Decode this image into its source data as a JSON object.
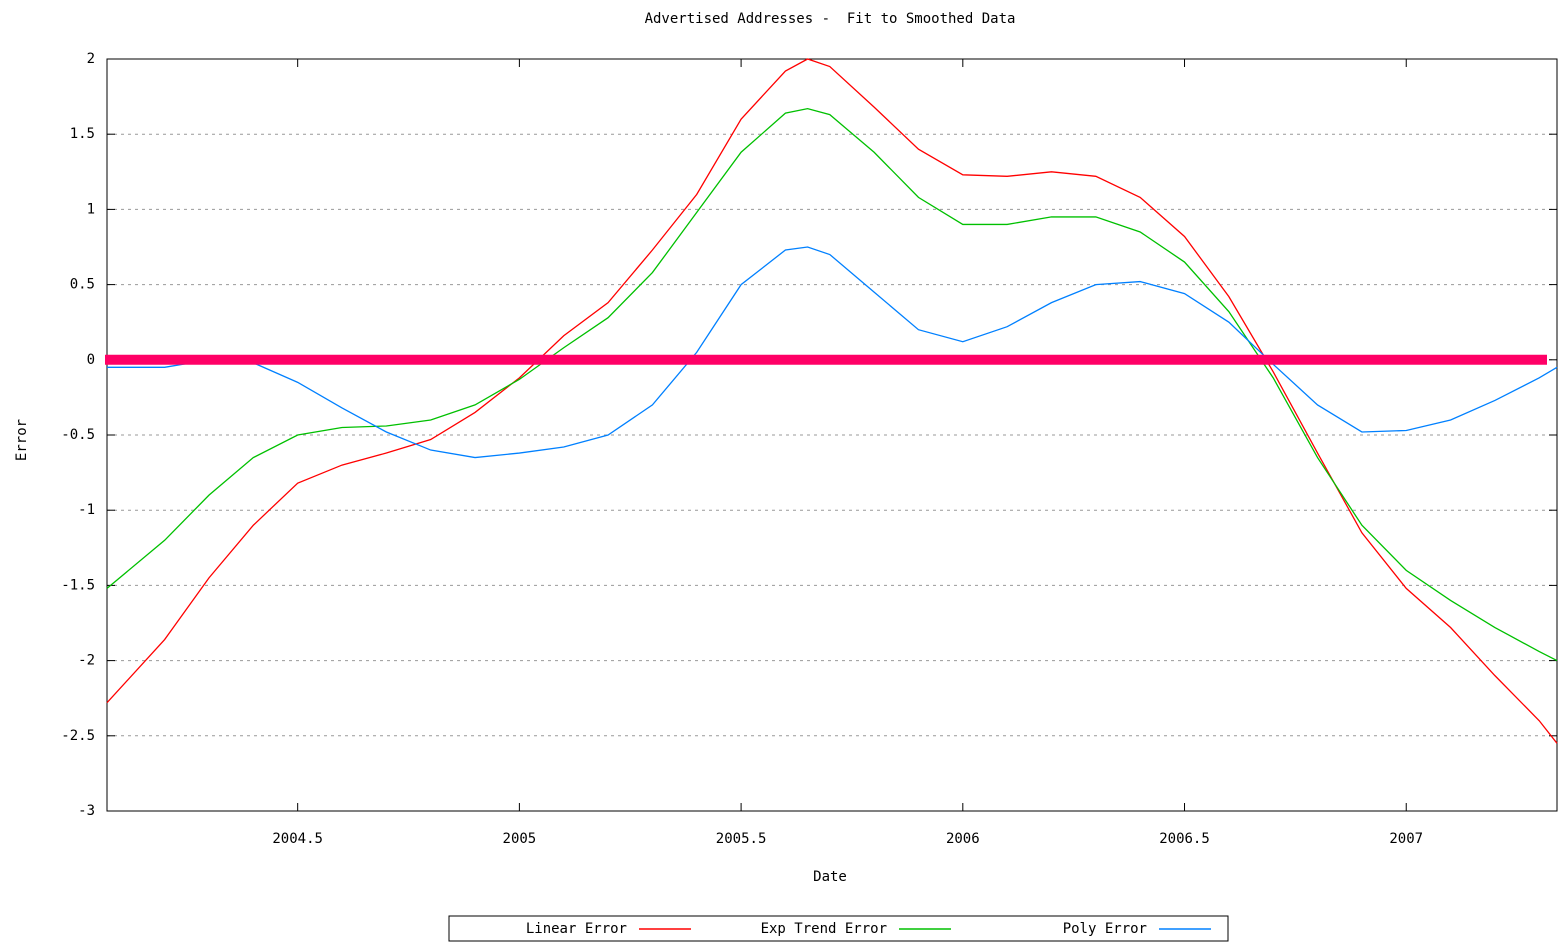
{
  "chart_data": {
    "type": "line",
    "title": "Advertised Addresses -  Fit to Smoothed Data",
    "x_label": "Date",
    "y_label": "Error",
    "x": [
      2004.07,
      2004.2,
      2004.3,
      2004.4,
      2004.5,
      2004.6,
      2004.7,
      2004.8,
      2004.9,
      2005.0,
      2005.1,
      2005.2,
      2005.3,
      2005.4,
      2005.5,
      2005.6,
      2005.65,
      2005.7,
      2005.8,
      2005.9,
      2006.0,
      2006.1,
      2006.2,
      2006.3,
      2006.4,
      2006.5,
      2006.6,
      2006.7,
      2006.8,
      2006.9,
      2007.0,
      2007.1,
      2007.2,
      2007.3,
      2007.34
    ],
    "series": [
      {
        "name": "Linear Error",
        "color": "#ff0000",
        "values": [
          -2.28,
          -1.86,
          -1.45,
          -1.1,
          -0.82,
          -0.7,
          -0.62,
          -0.53,
          -0.35,
          -0.12,
          0.16,
          0.38,
          0.73,
          1.1,
          1.6,
          1.92,
          2.0,
          1.95,
          1.68,
          1.4,
          1.23,
          1.22,
          1.25,
          1.22,
          1.08,
          0.82,
          0.42,
          -0.08,
          -0.62,
          -1.15,
          -1.52,
          -1.78,
          -2.1,
          -2.4,
          -2.55
        ]
      },
      {
        "name": "Exp Trend Error",
        "color": "#00c000",
        "values": [
          -1.52,
          -1.2,
          -0.9,
          -0.65,
          -0.5,
          -0.45,
          -0.44,
          -0.4,
          -0.3,
          -0.13,
          0.08,
          0.28,
          0.58,
          0.98,
          1.38,
          1.64,
          1.67,
          1.63,
          1.38,
          1.08,
          0.9,
          0.9,
          0.95,
          0.95,
          0.85,
          0.65,
          0.32,
          -0.12,
          -0.65,
          -1.1,
          -1.4,
          -1.6,
          -1.78,
          -1.94,
          -2.0
        ]
      },
      {
        "name": "Poly Error",
        "color": "#0080ff",
        "values": [
          -0.05,
          -0.05,
          0.0,
          -0.02,
          -0.15,
          -0.32,
          -0.48,
          -0.6,
          -0.65,
          -0.62,
          -0.58,
          -0.5,
          -0.3,
          0.05,
          0.5,
          0.73,
          0.75,
          0.7,
          0.45,
          0.2,
          0.12,
          0.22,
          0.38,
          0.5,
          0.52,
          0.44,
          0.25,
          -0.03,
          -0.3,
          -0.48,
          -0.47,
          -0.4,
          -0.27,
          -0.12,
          -0.05
        ]
      }
    ],
    "xlim": [
      2004.07,
      2007.34
    ],
    "xticks": [
      2004.5,
      2005,
      2005.5,
      2006,
      2006.5,
      2007
    ],
    "ylim": [
      -3,
      2
    ],
    "yticks": [
      -3,
      -2.5,
      -2,
      -1.5,
      -1,
      -0.5,
      0,
      0.5,
      1,
      1.5,
      2
    ],
    "grid": true,
    "legend": "bottom",
    "reference_line": {
      "value": 0,
      "color": "#ff0066"
    }
  }
}
